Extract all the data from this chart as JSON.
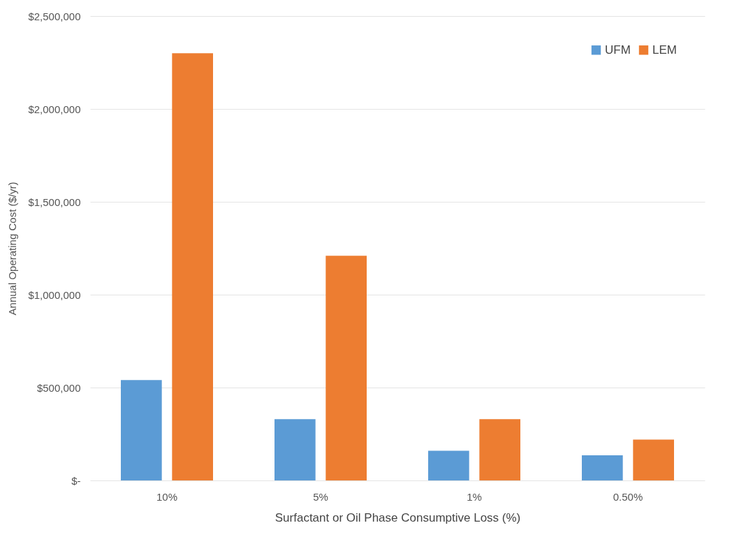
{
  "chart_data": {
    "type": "bar",
    "xlabel": "Surfactant or Oil Phase Consumptive Loss (%)",
    "ylabel": "Annual Operating Cost ($/yr)",
    "categories": [
      "10%",
      "5%",
      "1%",
      "0.50%"
    ],
    "series": [
      {
        "name": "UFM",
        "color": "#5b9bd5",
        "values": [
          540000,
          330000,
          160000,
          135000
        ]
      },
      {
        "name": "LEM",
        "color": "#ed7d31",
        "values": [
          2300000,
          1210000,
          330000,
          220000
        ]
      }
    ],
    "ylim": [
      0,
      2500000
    ],
    "yticks": [
      {
        "value": 0,
        "label": "$-"
      },
      {
        "value": 500000,
        "label": "$500,000"
      },
      {
        "value": 1000000,
        "label": "$1,000,000"
      },
      {
        "value": 1500000,
        "label": "$1,500,000"
      },
      {
        "value": 2000000,
        "label": "$2,000,000"
      },
      {
        "value": 2500000,
        "label": "$2,500,000"
      }
    ],
    "grid": "y",
    "legend": "top right"
  }
}
